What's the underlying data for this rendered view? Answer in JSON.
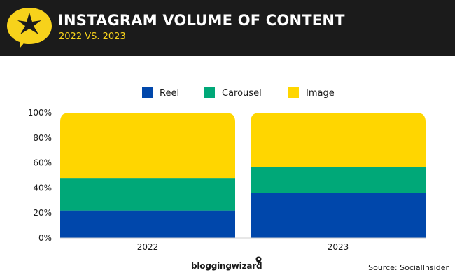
{
  "header": {
    "title": "INSTAGRAM VOLUME OF CONTENT",
    "subtitle": "2022 VS. 2023",
    "logo_icon": "star-speech-bubble-icon"
  },
  "colors": {
    "reel": "#0047ab",
    "carousel": "#00a878",
    "image": "#ffd600",
    "header_bg": "#1b1b1b",
    "accent": "#f7d21b"
  },
  "chart_data": {
    "type": "bar",
    "stacked": true,
    "categories": [
      "2022",
      "2023"
    ],
    "series": [
      {
        "name": "Reel",
        "values": [
          22,
          36
        ]
      },
      {
        "name": "Carousel",
        "values": [
          26,
          21
        ]
      },
      {
        "name": "Image",
        "values": [
          52,
          43
        ]
      }
    ],
    "ylim": [
      0,
      100
    ],
    "y_ticks": [
      "0%",
      "20%",
      "40%",
      "60%",
      "80%",
      "100%"
    ],
    "legend_position": "top-center",
    "grid": false
  },
  "footer": {
    "brand": "bloggingwizard",
    "source": "Source: SocialInsider"
  }
}
